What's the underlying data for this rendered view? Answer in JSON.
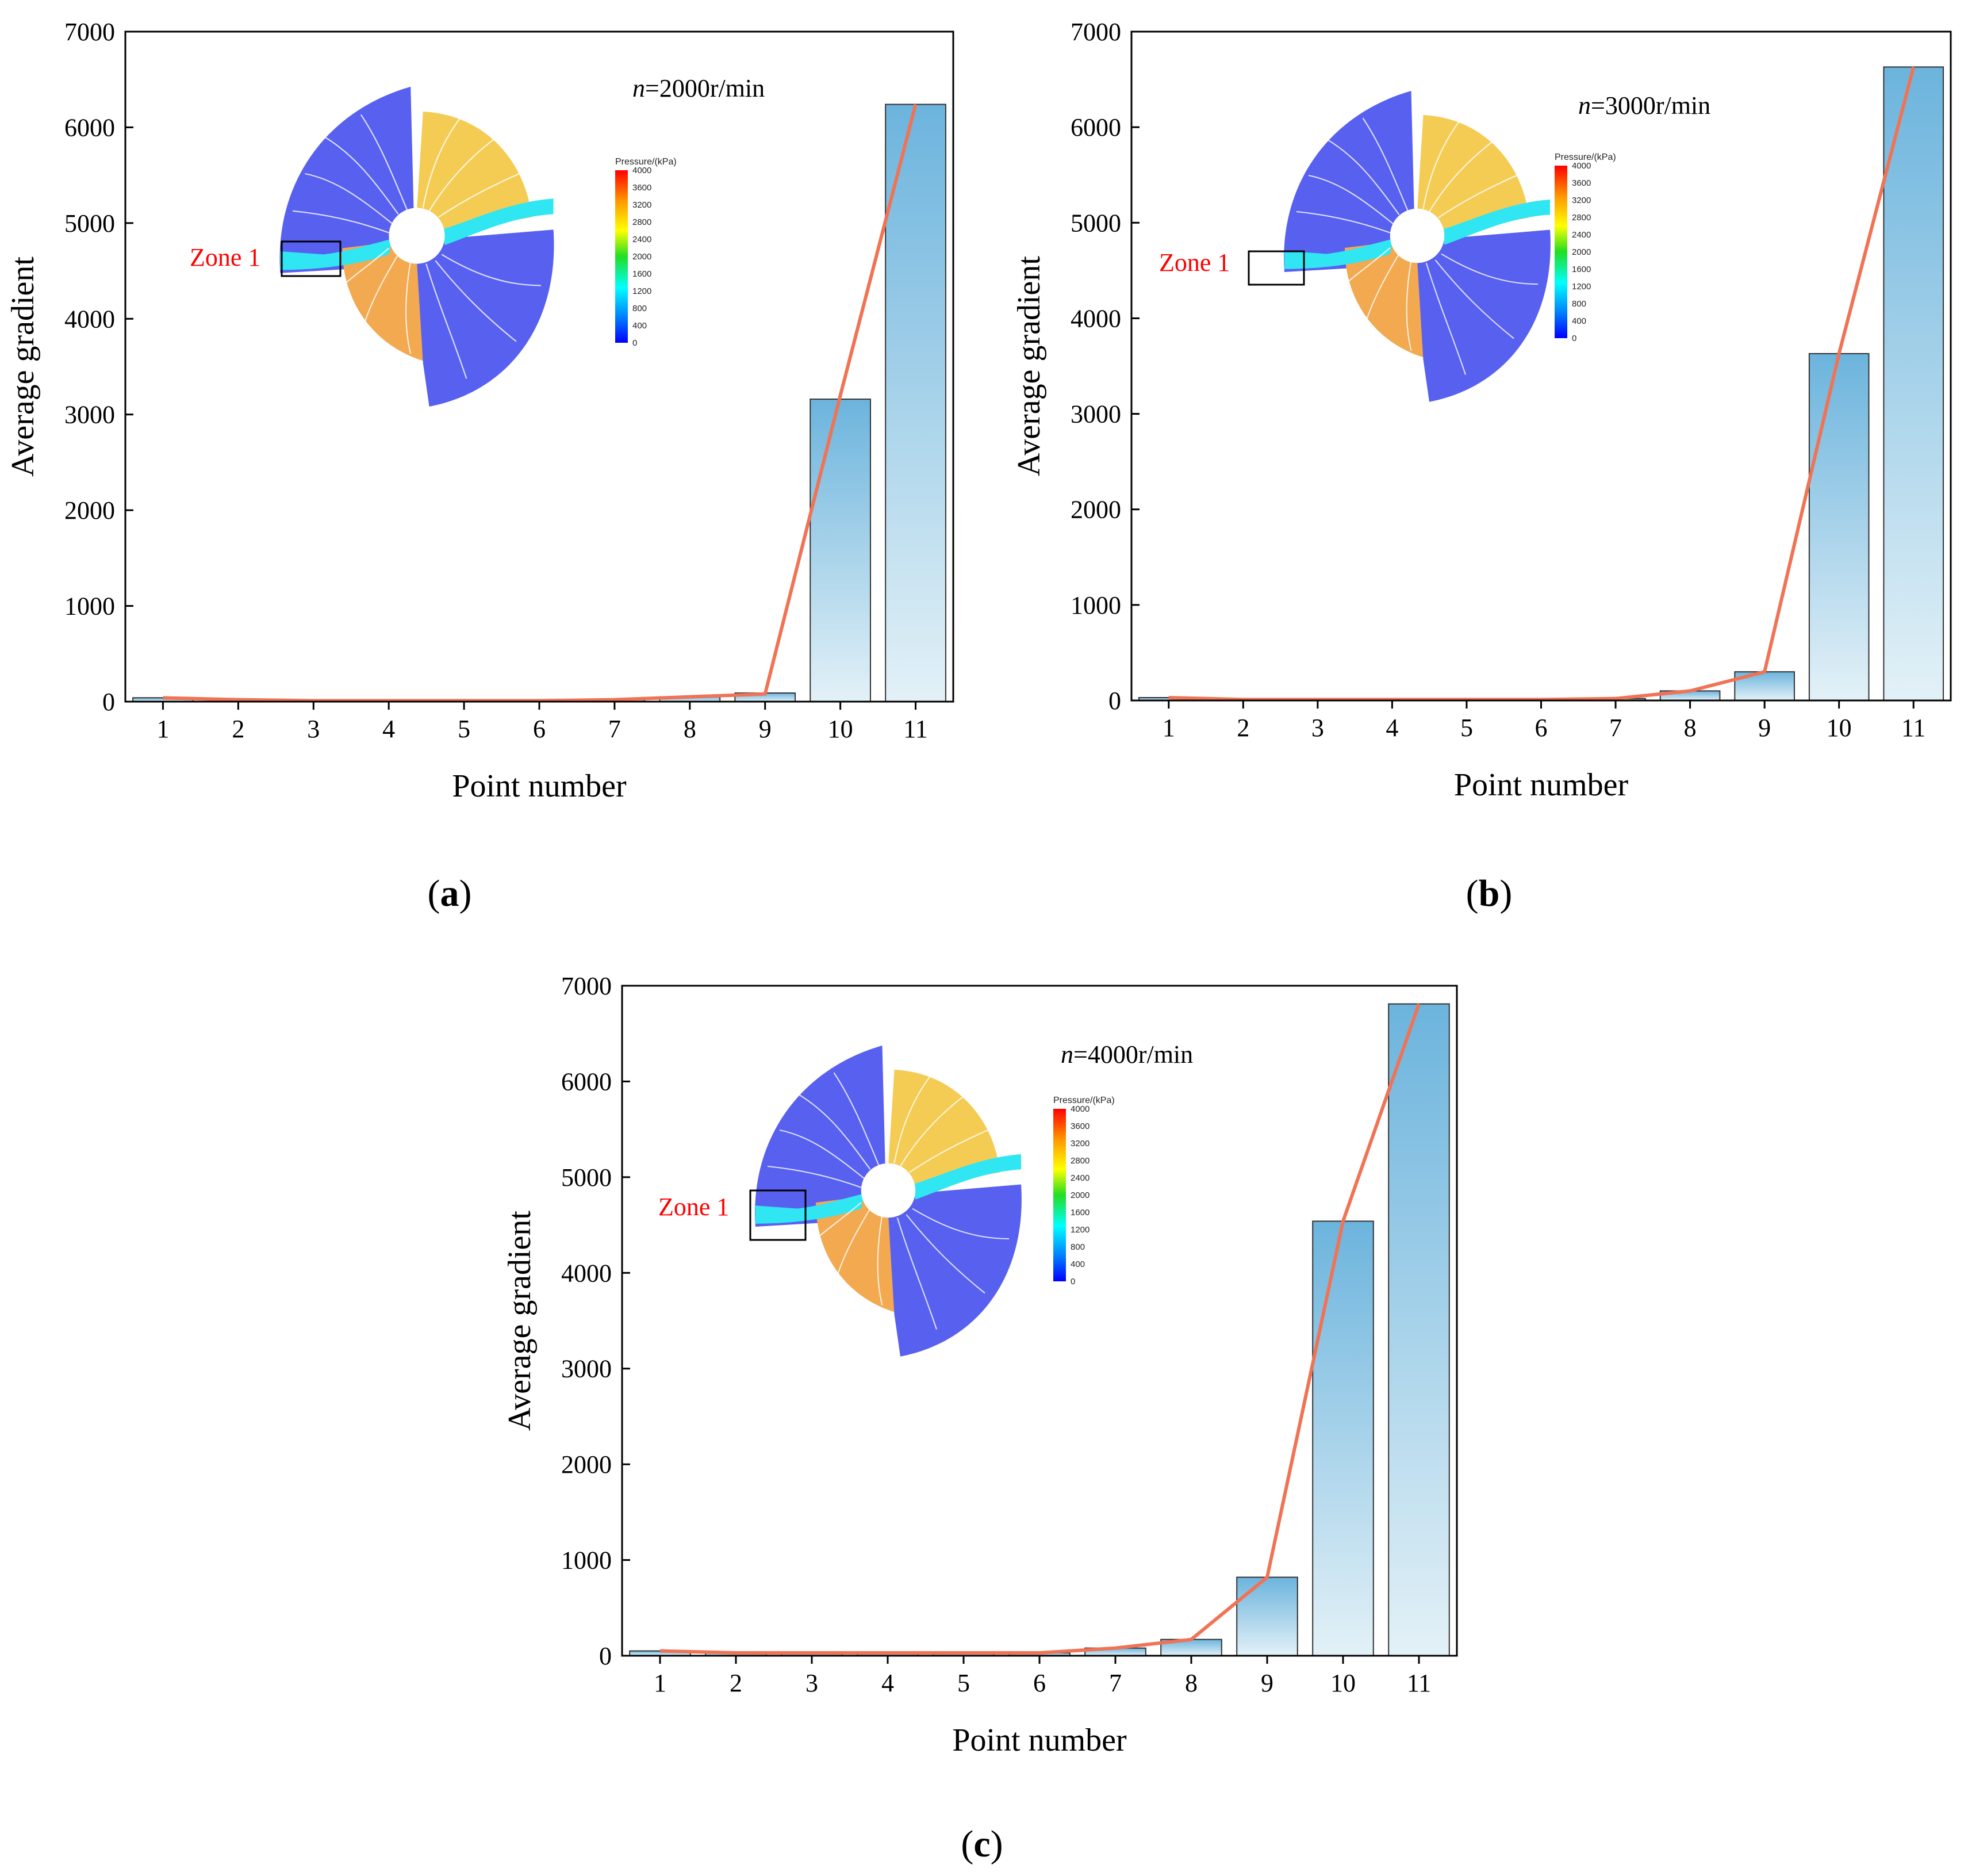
{
  "colors": {
    "bar_top": "#6cb4dd",
    "bar_bottom": "#e3f1f7",
    "bar_stroke": "#333333",
    "line": "#f07355",
    "zone_text": "#ff0000",
    "rotor_blue": "#5860f0",
    "rotor_yellow": "#f4cc54",
    "rotor_orange": "#f2a950",
    "rotor_cyan": "#2fe6f2"
  },
  "labels": {
    "x_axis_title": "Point number",
    "y_axis_title": "Average gradient",
    "zone_label": "Zone 1",
    "colorbar_title": "Pressure/(kPa)",
    "colorbar_ticks": [
      "4000",
      "3600",
      "3200",
      "2800",
      "2400",
      "2000",
      "1600",
      "1200",
      "800",
      "400",
      "0"
    ]
  },
  "chart_data": [
    {
      "type": "bar",
      "panel_label": "(a)",
      "panel_letter": "a",
      "speed_var": "n",
      "speed_rest": "=2000r/min",
      "title": "n=2000r/min",
      "xlabel": "Point number",
      "ylabel": "Average gradient",
      "categories": [
        "1",
        "2",
        "3",
        "4",
        "5",
        "6",
        "7",
        "8",
        "9",
        "10",
        "11"
      ],
      "values": [
        40,
        20,
        10,
        10,
        10,
        10,
        20,
        50,
        90,
        3160,
        6240
      ],
      "line_values": [
        40,
        20,
        10,
        10,
        10,
        10,
        20,
        50,
        80,
        3200,
        6240
      ],
      "ylim": [
        0,
        7000
      ],
      "yticks": [
        0,
        1000,
        2000,
        3000,
        4000,
        5000,
        6000,
        7000
      ]
    },
    {
      "type": "bar",
      "panel_label": "(b)",
      "panel_letter": "b",
      "speed_var": "n",
      "speed_rest": "=3000r/min",
      "title": "n=3000r/min",
      "xlabel": "Point number",
      "ylabel": "Average gradient",
      "categories": [
        "1",
        "2",
        "3",
        "4",
        "5",
        "6",
        "7",
        "8",
        "9",
        "10",
        "11"
      ],
      "values": [
        30,
        10,
        10,
        10,
        10,
        10,
        20,
        100,
        300,
        3630,
        6630
      ],
      "line_values": [
        30,
        10,
        10,
        10,
        10,
        10,
        20,
        100,
        300,
        3630,
        6630
      ],
      "ylim": [
        0,
        7000
      ],
      "yticks": [
        0,
        1000,
        2000,
        3000,
        4000,
        5000,
        6000,
        7000
      ]
    },
    {
      "type": "bar",
      "panel_label": "(c)",
      "panel_letter": "c",
      "speed_var": "n",
      "speed_rest": "=4000r/min",
      "title": "n=4000r/min",
      "xlabel": "Point number",
      "ylabel": "Average gradient",
      "categories": [
        "1",
        "2",
        "3",
        "4",
        "5",
        "6",
        "7",
        "8",
        "9",
        "10",
        "11"
      ],
      "values": [
        50,
        30,
        30,
        30,
        30,
        30,
        80,
        170,
        820,
        4540,
        6810
      ],
      "line_values": [
        50,
        30,
        30,
        30,
        30,
        30,
        80,
        170,
        820,
        4540,
        6810
      ],
      "ylim": [
        0,
        7000
      ],
      "yticks": [
        0,
        1000,
        2000,
        3000,
        4000,
        5000,
        6000,
        7000
      ]
    }
  ]
}
